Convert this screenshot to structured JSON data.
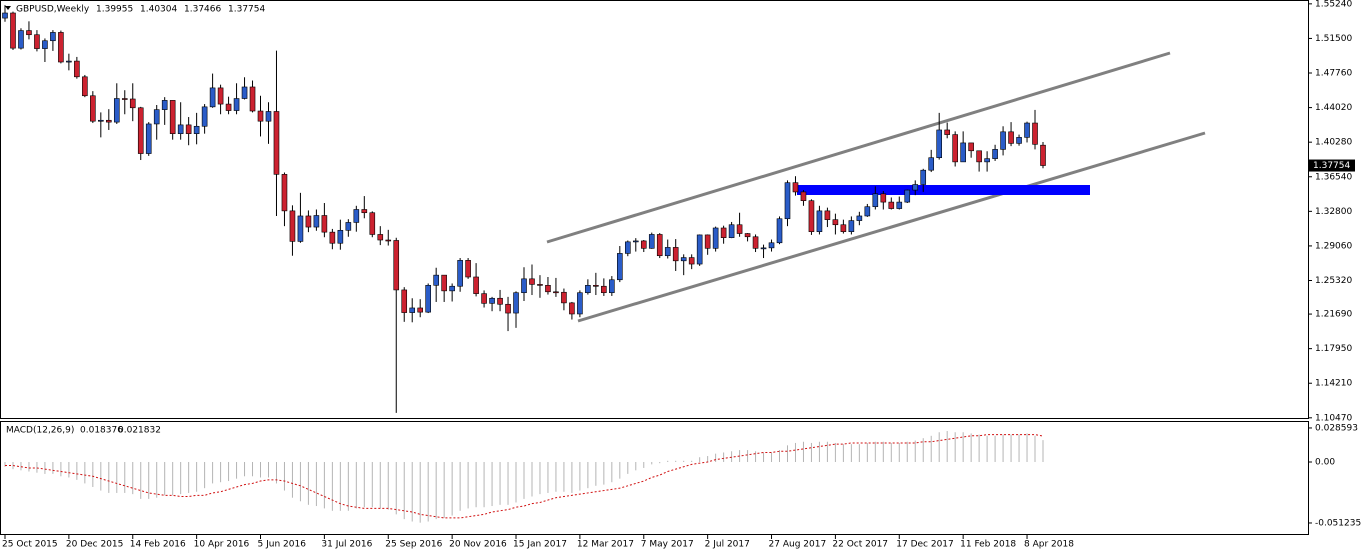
{
  "chart_data": {
    "type": "candlestick",
    "title": "GBPUSD,Weekly",
    "up_color": "#2a5cc8",
    "down_color": "#cc2230",
    "grid": false,
    "ylim": [
      1.1045,
      1.5544
    ],
    "yticks": [
      {
        "value": 1.5524,
        "label": "1.55240"
      },
      {
        "value": 1.515,
        "label": "1.51500"
      },
      {
        "value": 1.4776,
        "label": "1.47760"
      },
      {
        "value": 1.4402,
        "label": "1.44020"
      },
      {
        "value": 1.4028,
        "label": "1.40280"
      },
      {
        "value": 1.3654,
        "label": "1.36540"
      },
      {
        "value": 1.328,
        "label": "1.32800"
      },
      {
        "value": 1.2906,
        "label": "1.29060"
      },
      {
        "value": 1.2532,
        "label": "1.25320"
      },
      {
        "value": 1.2169,
        "label": "1.21690"
      },
      {
        "value": 1.1795,
        "label": "1.17950"
      },
      {
        "value": 1.1421,
        "label": "1.14210"
      },
      {
        "value": 1.1047,
        "label": "1.10470"
      }
    ],
    "categories": [
      "25 Oct 2015",
      null,
      null,
      null,
      null,
      null,
      null,
      null,
      "20 Dec 2015",
      null,
      null,
      null,
      null,
      null,
      null,
      null,
      "14 Feb 2016",
      null,
      null,
      null,
      null,
      null,
      null,
      null,
      "10 Apr 2016",
      null,
      null,
      null,
      null,
      null,
      null,
      null,
      "5 Jun 2016",
      null,
      null,
      null,
      null,
      null,
      null,
      null,
      "31 Jul 2016",
      null,
      null,
      null,
      null,
      null,
      null,
      null,
      "25 Sep 2016",
      null,
      null,
      null,
      null,
      null,
      null,
      null,
      "20 Nov 2016",
      null,
      null,
      null,
      null,
      null,
      null,
      null,
      "15 Jan 2017",
      null,
      null,
      null,
      null,
      null,
      null,
      null,
      "12 Mar 2017",
      null,
      null,
      null,
      null,
      null,
      null,
      null,
      "7 May 2017",
      null,
      null,
      null,
      null,
      null,
      null,
      null,
      "2 Jul 2017",
      null,
      null,
      null,
      null,
      null,
      null,
      null,
      "27 Aug 2017",
      null,
      null,
      null,
      null,
      null,
      null,
      null,
      "22 Oct 2017",
      null,
      null,
      null,
      null,
      null,
      null,
      null,
      "17 Dec 2017",
      null,
      null,
      null,
      null,
      null,
      null,
      null,
      "11 Feb 2018",
      null,
      null,
      null,
      null,
      null,
      null,
      null,
      "8 Apr 2018",
      null,
      null
    ],
    "open": [
      1.537,
      1.5425,
      1.5045,
      1.5235,
      1.519,
      1.504,
      1.5125,
      1.5215,
      1.4895,
      1.4905,
      1.4735,
      1.453,
      1.4255,
      1.4265,
      1.4245,
      1.45,
      1.4495,
      1.44,
      1.3905,
      1.4225,
      1.438,
      1.448,
      1.412,
      1.4215,
      1.412,
      1.42,
      1.441,
      1.4615,
      1.444,
      1.437,
      1.45,
      1.4625,
      1.4365,
      1.4255,
      1.436,
      1.368,
      1.3285,
      1.2955,
      1.323,
      1.311,
      1.3235,
      1.3055,
      1.2935,
      1.3075,
      1.316,
      1.33,
      1.3265,
      1.303,
      1.297,
      1.2965,
      1.243,
      1.2185,
      1.2235,
      1.219,
      1.248,
      1.259,
      1.242,
      1.247,
      1.275,
      1.257,
      1.239,
      1.2285,
      1.234,
      1.2275,
      1.218,
      1.24,
      1.255,
      1.249,
      1.248,
      1.241,
      1.2405,
      1.229,
      1.217,
      1.24,
      1.248,
      1.247,
      1.24,
      1.254,
      1.2825,
      1.295,
      1.296,
      1.288,
      1.303,
      1.28,
      1.289,
      1.2745,
      1.278,
      1.271,
      1.3025,
      1.288,
      1.31,
      1.2995,
      1.3135,
      1.304,
      1.3005,
      1.288,
      1.2885,
      1.294,
      1.32,
      1.359,
      1.349,
      1.3395,
      1.306,
      1.3285,
      1.319,
      1.3135,
      1.306,
      1.318,
      1.323,
      1.333,
      1.347,
      1.338,
      1.331,
      1.338,
      1.351,
      1.357,
      1.3725,
      1.386,
      1.416,
      1.411,
      1.3815,
      1.402,
      1.3935,
      1.3815,
      1.385,
      1.395,
      1.414,
      1.4015,
      1.408,
      1.4235,
      1.39955
    ],
    "high": [
      1.551,
      1.544,
      1.526,
      1.5335,
      1.524,
      1.515,
      1.524,
      1.5235,
      1.4985,
      1.495,
      1.4755,
      1.458,
      1.435,
      1.4385,
      1.4665,
      1.459,
      1.4665,
      1.441,
      1.4245,
      1.443,
      1.4515,
      1.448,
      1.446,
      1.43,
      1.4345,
      1.444,
      1.477,
      1.465,
      1.452,
      1.4665,
      1.473,
      1.4695,
      1.453,
      1.446,
      1.5018,
      1.37,
      1.3345,
      1.348,
      1.329,
      1.33,
      1.337,
      1.309,
      1.319,
      1.3195,
      1.334,
      1.3445,
      1.328,
      1.312,
      1.308,
      1.2995,
      1.246,
      1.234,
      1.233,
      1.25,
      1.267,
      1.259,
      1.25,
      1.2775,
      1.2775,
      1.272,
      1.2425,
      1.2355,
      1.243,
      1.2355,
      1.2415,
      1.2675,
      1.2705,
      1.259,
      1.257,
      1.256,
      1.2445,
      1.23,
      1.2425,
      1.2545,
      1.2615,
      1.2555,
      1.258,
      1.2905,
      1.2965,
      1.299,
      1.297,
      1.305,
      1.3045,
      1.2975,
      1.298,
      1.2815,
      1.2815,
      1.303,
      1.303,
      1.3115,
      1.3125,
      1.3165,
      1.3265,
      1.3045,
      1.303,
      1.292,
      1.2975,
      1.3225,
      1.3615,
      1.366,
      1.351,
      1.341,
      1.334,
      1.332,
      1.3255,
      1.319,
      1.3225,
      1.3275,
      1.336,
      1.355,
      1.35,
      1.343,
      1.344,
      1.3515,
      1.3615,
      1.374,
      1.3945,
      1.4345,
      1.424,
      1.4145,
      1.4145,
      1.402,
      1.3935,
      1.393,
      1.4,
      1.42,
      1.4245,
      1.411,
      1.425,
      1.4377,
      1.40304
    ],
    "low": [
      1.533,
      1.5025,
      1.503,
      1.514,
      1.501,
      1.4895,
      1.5015,
      1.488,
      1.4805,
      1.4715,
      1.4515,
      1.4235,
      1.408,
      1.416,
      1.4225,
      1.433,
      1.4255,
      1.3835,
      1.388,
      1.4055,
      1.4215,
      1.4055,
      1.4055,
      1.3995,
      1.4005,
      1.412,
      1.44,
      1.433,
      1.433,
      1.433,
      1.449,
      1.435,
      1.409,
      1.401,
      1.3229,
      1.312,
      1.28,
      1.294,
      1.3055,
      1.307,
      1.3,
      1.287,
      1.2865,
      1.3005,
      1.306,
      1.3205,
      1.3,
      1.2915,
      1.291,
      1.11,
      1.2085,
      1.208,
      1.2135,
      1.218,
      1.23,
      1.23,
      1.2305,
      1.241,
      1.255,
      1.236,
      1.224,
      1.22,
      1.22,
      1.1985,
      1.202,
      1.231,
      1.2375,
      1.2345,
      1.238,
      1.2355,
      1.221,
      1.211,
      1.2135,
      1.238,
      1.2375,
      1.2365,
      1.2365,
      1.2515,
      1.2795,
      1.2845,
      1.284,
      1.2875,
      1.2775,
      1.277,
      1.2635,
      1.259,
      1.2655,
      1.269,
      1.281,
      1.2845,
      1.293,
      1.299,
      1.3005,
      1.2955,
      1.284,
      1.2775,
      1.2845,
      1.2925,
      1.312,
      1.345,
      1.334,
      1.3025,
      1.303,
      1.311,
      1.303,
      1.304,
      1.303,
      1.313,
      1.322,
      1.33,
      1.33,
      1.33,
      1.33,
      1.337,
      1.3455,
      1.349,
      1.3705,
      1.384,
      1.407,
      1.3765,
      1.3815,
      1.386,
      1.371,
      1.371,
      1.3825,
      1.3885,
      1.3985,
      1.399,
      1.4025,
      1.395,
      1.37466
    ],
    "close": [
      1.5425,
      1.5045,
      1.5235,
      1.519,
      1.504,
      1.5125,
      1.5215,
      1.4895,
      1.4905,
      1.4735,
      1.453,
      1.4255,
      1.4265,
      1.4245,
      1.45,
      1.4495,
      1.44,
      1.3905,
      1.4225,
      1.438,
      1.448,
      1.412,
      1.4215,
      1.412,
      1.42,
      1.441,
      1.4615,
      1.444,
      1.437,
      1.45,
      1.4625,
      1.4365,
      1.4255,
      1.436,
      1.368,
      1.3285,
      1.2955,
      1.323,
      1.311,
      1.3235,
      1.3055,
      1.2935,
      1.3075,
      1.316,
      1.33,
      1.3265,
      1.303,
      1.297,
      1.2965,
      1.243,
      1.2185,
      1.2235,
      1.219,
      1.248,
      1.259,
      1.242,
      1.247,
      1.275,
      1.257,
      1.239,
      1.2285,
      1.234,
      1.2275,
      1.218,
      1.24,
      1.255,
      1.249,
      1.248,
      1.241,
      1.2405,
      1.229,
      1.217,
      1.24,
      1.248,
      1.247,
      1.24,
      1.254,
      1.2825,
      1.295,
      1.296,
      1.288,
      1.303,
      1.28,
      1.289,
      1.2745,
      1.278,
      1.271,
      1.3025,
      1.288,
      1.31,
      1.2995,
      1.3135,
      1.304,
      1.3005,
      1.288,
      1.2885,
      1.294,
      1.32,
      1.359,
      1.349,
      1.3395,
      1.306,
      1.3285,
      1.319,
      1.3135,
      1.306,
      1.318,
      1.323,
      1.333,
      1.347,
      1.338,
      1.331,
      1.338,
      1.351,
      1.357,
      1.3725,
      1.386,
      1.416,
      1.411,
      1.3815,
      1.402,
      1.3935,
      1.3815,
      1.385,
      1.395,
      1.414,
      1.4015,
      1.408,
      1.4235,
      1.4005,
      1.37754
    ],
    "macd": {
      "title": "MACD(12,26,9)",
      "bar_color": "#b4b4b4",
      "signal_color": "#d01010",
      "y2lim": [
        -0.0605,
        0.0336
      ],
      "y2ticks": [
        0.028593,
        {
          "value": 0,
          "label": "0.00"
        },
        -0.051235
      ],
      "main": [
        -0.004,
        -0.006,
        -0.007,
        -0.008,
        -0.009,
        -0.01,
        -0.01,
        -0.012,
        -0.013,
        -0.015,
        -0.018,
        -0.021,
        -0.024,
        -0.026,
        -0.026,
        -0.026,
        -0.027,
        -0.031,
        -0.031,
        -0.03,
        -0.028,
        -0.028,
        -0.027,
        -0.026,
        -0.025,
        -0.022,
        -0.018,
        -0.017,
        -0.016,
        -0.014,
        -0.012,
        -0.012,
        -0.013,
        -0.013,
        -0.018,
        -0.024,
        -0.03,
        -0.033,
        -0.036,
        -0.037,
        -0.039,
        -0.041,
        -0.041,
        -0.041,
        -0.039,
        -0.038,
        -0.038,
        -0.039,
        -0.04,
        -0.044,
        -0.048,
        -0.05,
        -0.051,
        -0.05,
        -0.048,
        -0.047,
        -0.045,
        -0.041,
        -0.039,
        -0.038,
        -0.038,
        -0.037,
        -0.036,
        -0.036,
        -0.034,
        -0.031,
        -0.029,
        -0.027,
        -0.026,
        -0.025,
        -0.025,
        -0.026,
        -0.024,
        -0.022,
        -0.02,
        -0.019,
        -0.017,
        -0.014,
        -0.01,
        -0.007,
        -0.005,
        -0.002,
        -0.001,
        0.001,
        0.001,
        0.001,
        0.001,
        0.004,
        0.005,
        0.007,
        0.008,
        0.009,
        0.01,
        0.01,
        0.009,
        0.008,
        0.008,
        0.01,
        0.014,
        0.016,
        0.017,
        0.016,
        0.017,
        0.017,
        0.016,
        0.015,
        0.015,
        0.015,
        0.016,
        0.017,
        0.017,
        0.016,
        0.016,
        0.017,
        0.018,
        0.02,
        0.022,
        0.025,
        0.026,
        0.025,
        0.025,
        0.024,
        0.023,
        0.022,
        0.022,
        0.023,
        0.023,
        0.023,
        0.024,
        0.022,
        0.018376
      ],
      "signal": [
        -0.003,
        -0.003,
        -0.004,
        -0.005,
        -0.005,
        -0.006,
        -0.007,
        -0.008,
        -0.009,
        -0.01,
        -0.011,
        -0.012,
        -0.014,
        -0.016,
        -0.018,
        -0.02,
        -0.022,
        -0.024,
        -0.026,
        -0.027,
        -0.028,
        -0.028,
        -0.029,
        -0.029,
        -0.028,
        -0.028,
        -0.026,
        -0.025,
        -0.023,
        -0.021,
        -0.019,
        -0.018,
        -0.016,
        -0.015,
        -0.015,
        -0.016,
        -0.018,
        -0.02,
        -0.023,
        -0.026,
        -0.029,
        -0.032,
        -0.035,
        -0.037,
        -0.038,
        -0.039,
        -0.039,
        -0.039,
        -0.039,
        -0.04,
        -0.041,
        -0.042,
        -0.044,
        -0.045,
        -0.046,
        -0.047,
        -0.047,
        -0.047,
        -0.046,
        -0.045,
        -0.044,
        -0.042,
        -0.041,
        -0.04,
        -0.038,
        -0.037,
        -0.035,
        -0.034,
        -0.032,
        -0.03,
        -0.029,
        -0.028,
        -0.027,
        -0.026,
        -0.025,
        -0.024,
        -0.023,
        -0.022,
        -0.02,
        -0.018,
        -0.016,
        -0.013,
        -0.011,
        -0.008,
        -0.006,
        -0.004,
        -0.002,
        -0.001,
        0.0,
        0.002,
        0.003,
        0.004,
        0.005,
        0.006,
        0.007,
        0.008,
        0.008,
        0.009,
        0.009,
        0.01,
        0.011,
        0.012,
        0.013,
        0.014,
        0.015,
        0.015,
        0.016,
        0.016,
        0.016,
        0.016,
        0.016,
        0.016,
        0.016,
        0.016,
        0.016,
        0.017,
        0.017,
        0.018,
        0.019,
        0.02,
        0.021,
        0.022,
        0.022,
        0.023,
        0.023,
        0.023,
        0.023,
        0.023,
        0.023,
        0.023,
        0.021832
      ]
    }
  }
}
